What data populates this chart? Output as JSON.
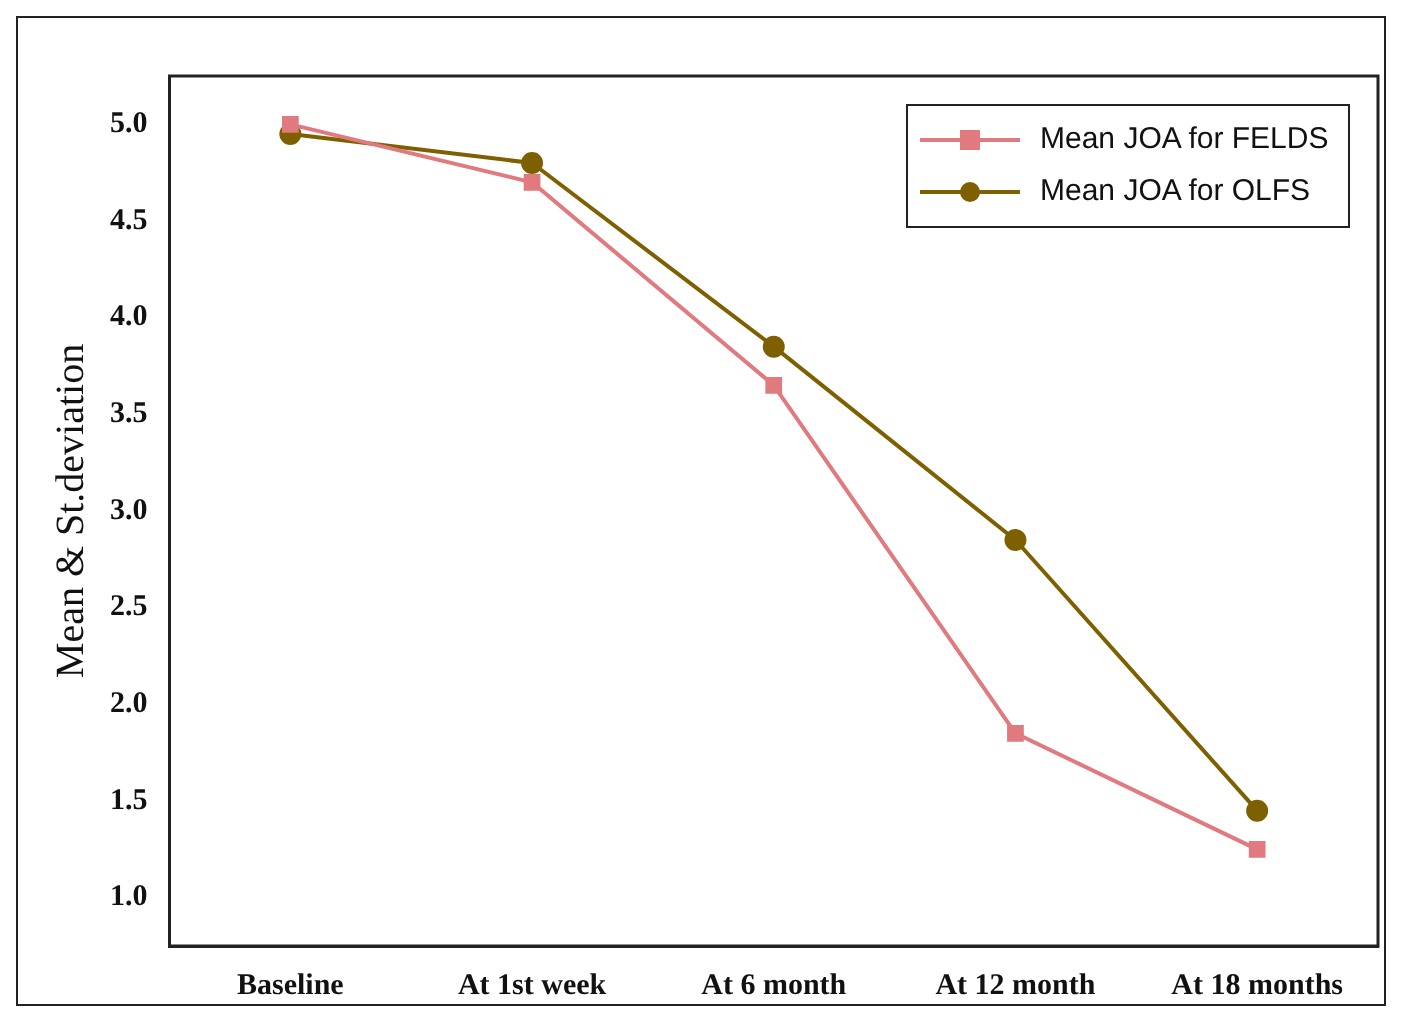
{
  "chart_data": {
    "type": "line",
    "ylabel": "Mean & St.deviation",
    "categories": [
      "Baseline",
      "At 1st week",
      "At 6 month",
      "At 12 month",
      "At 18 months"
    ],
    "series": [
      {
        "name": "Mean JOA for FELDS",
        "color": "#e07a7e",
        "marker": "square",
        "values": [
          5.0,
          4.7,
          3.65,
          1.85,
          1.25
        ]
      },
      {
        "name": "Mean JOA for OLFS",
        "color": "#7f6000",
        "marker": "circle",
        "values": [
          4.95,
          4.8,
          3.85,
          2.85,
          1.45
        ]
      }
    ],
    "ylim": [
      0.75,
      5.25
    ],
    "yticks": [
      {
        "value": 1,
        "label": "1.0"
      },
      {
        "value": 1.5,
        "label": "1.5"
      },
      {
        "value": 2,
        "label": "2.0"
      },
      {
        "value": 2.5,
        "label": "2.5"
      },
      {
        "value": 3,
        "label": "3.0"
      },
      {
        "value": 3.5,
        "label": "3.5"
      },
      {
        "value": 4,
        "label": "4.0"
      },
      {
        "value": 4.5,
        "label": "4.5"
      },
      {
        "value": 5,
        "label": "5.0"
      }
    ],
    "grid": false,
    "legend": "top right",
    "line_style": "solid"
  }
}
